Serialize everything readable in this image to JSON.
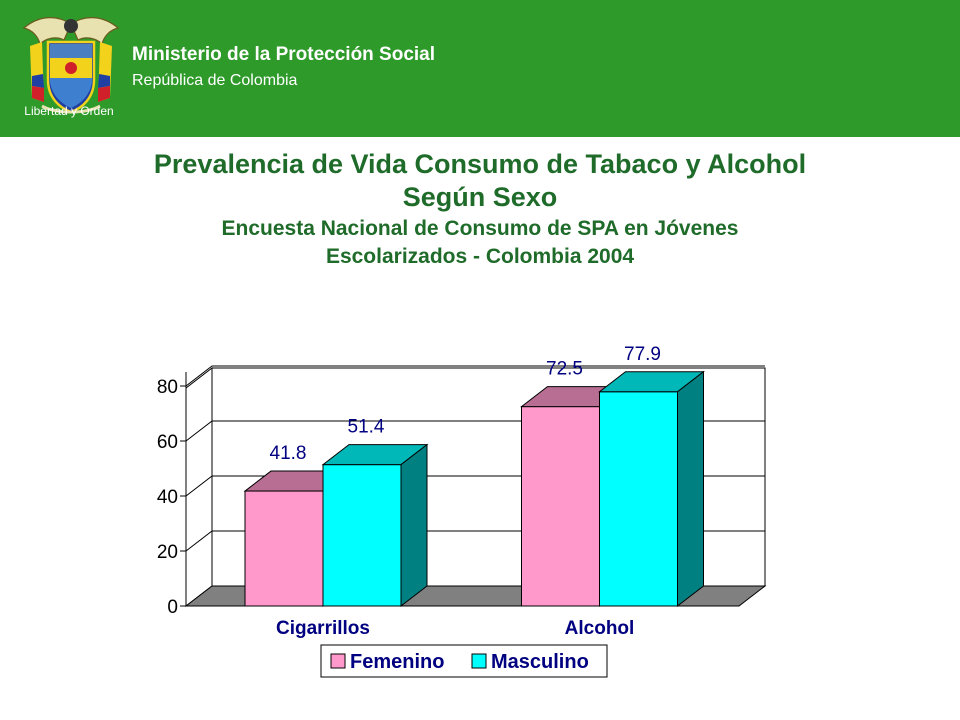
{
  "header": {
    "organization": "Ministerio de la Protección Social",
    "country": "República de Colombia",
    "motto": "Libertad y Orden",
    "background_color": "#2e9a2a"
  },
  "slide": {
    "title_line1": "Prevalencia de Vida Consumo de Tabaco y Alcohol",
    "title_line2": "Según Sexo",
    "subtitle_line1": "Encuesta Nacional de Consumo de SPA en Jóvenes",
    "subtitle_line2": "Escolarizados - Colombia 2004"
  },
  "chart_data": {
    "type": "bar",
    "style": "3d-clustered",
    "categories": [
      "Cigarrillos",
      "Alcohol"
    ],
    "series": [
      {
        "name": "Femenino",
        "values": [
          41.8,
          72.5
        ],
        "color": "#ff99cc",
        "labels": [
          "41.8",
          "72.5"
        ]
      },
      {
        "name": "Masculino",
        "values": [
          51.4,
          77.9
        ],
        "color": "#00ffff",
        "labels": [
          "51.4",
          "77.9"
        ]
      }
    ],
    "y_ticks": [
      "0",
      "20",
      "40",
      "60",
      "80"
    ],
    "ylim": [
      0,
      80
    ],
    "grid": true,
    "legend_position": "bottom"
  }
}
